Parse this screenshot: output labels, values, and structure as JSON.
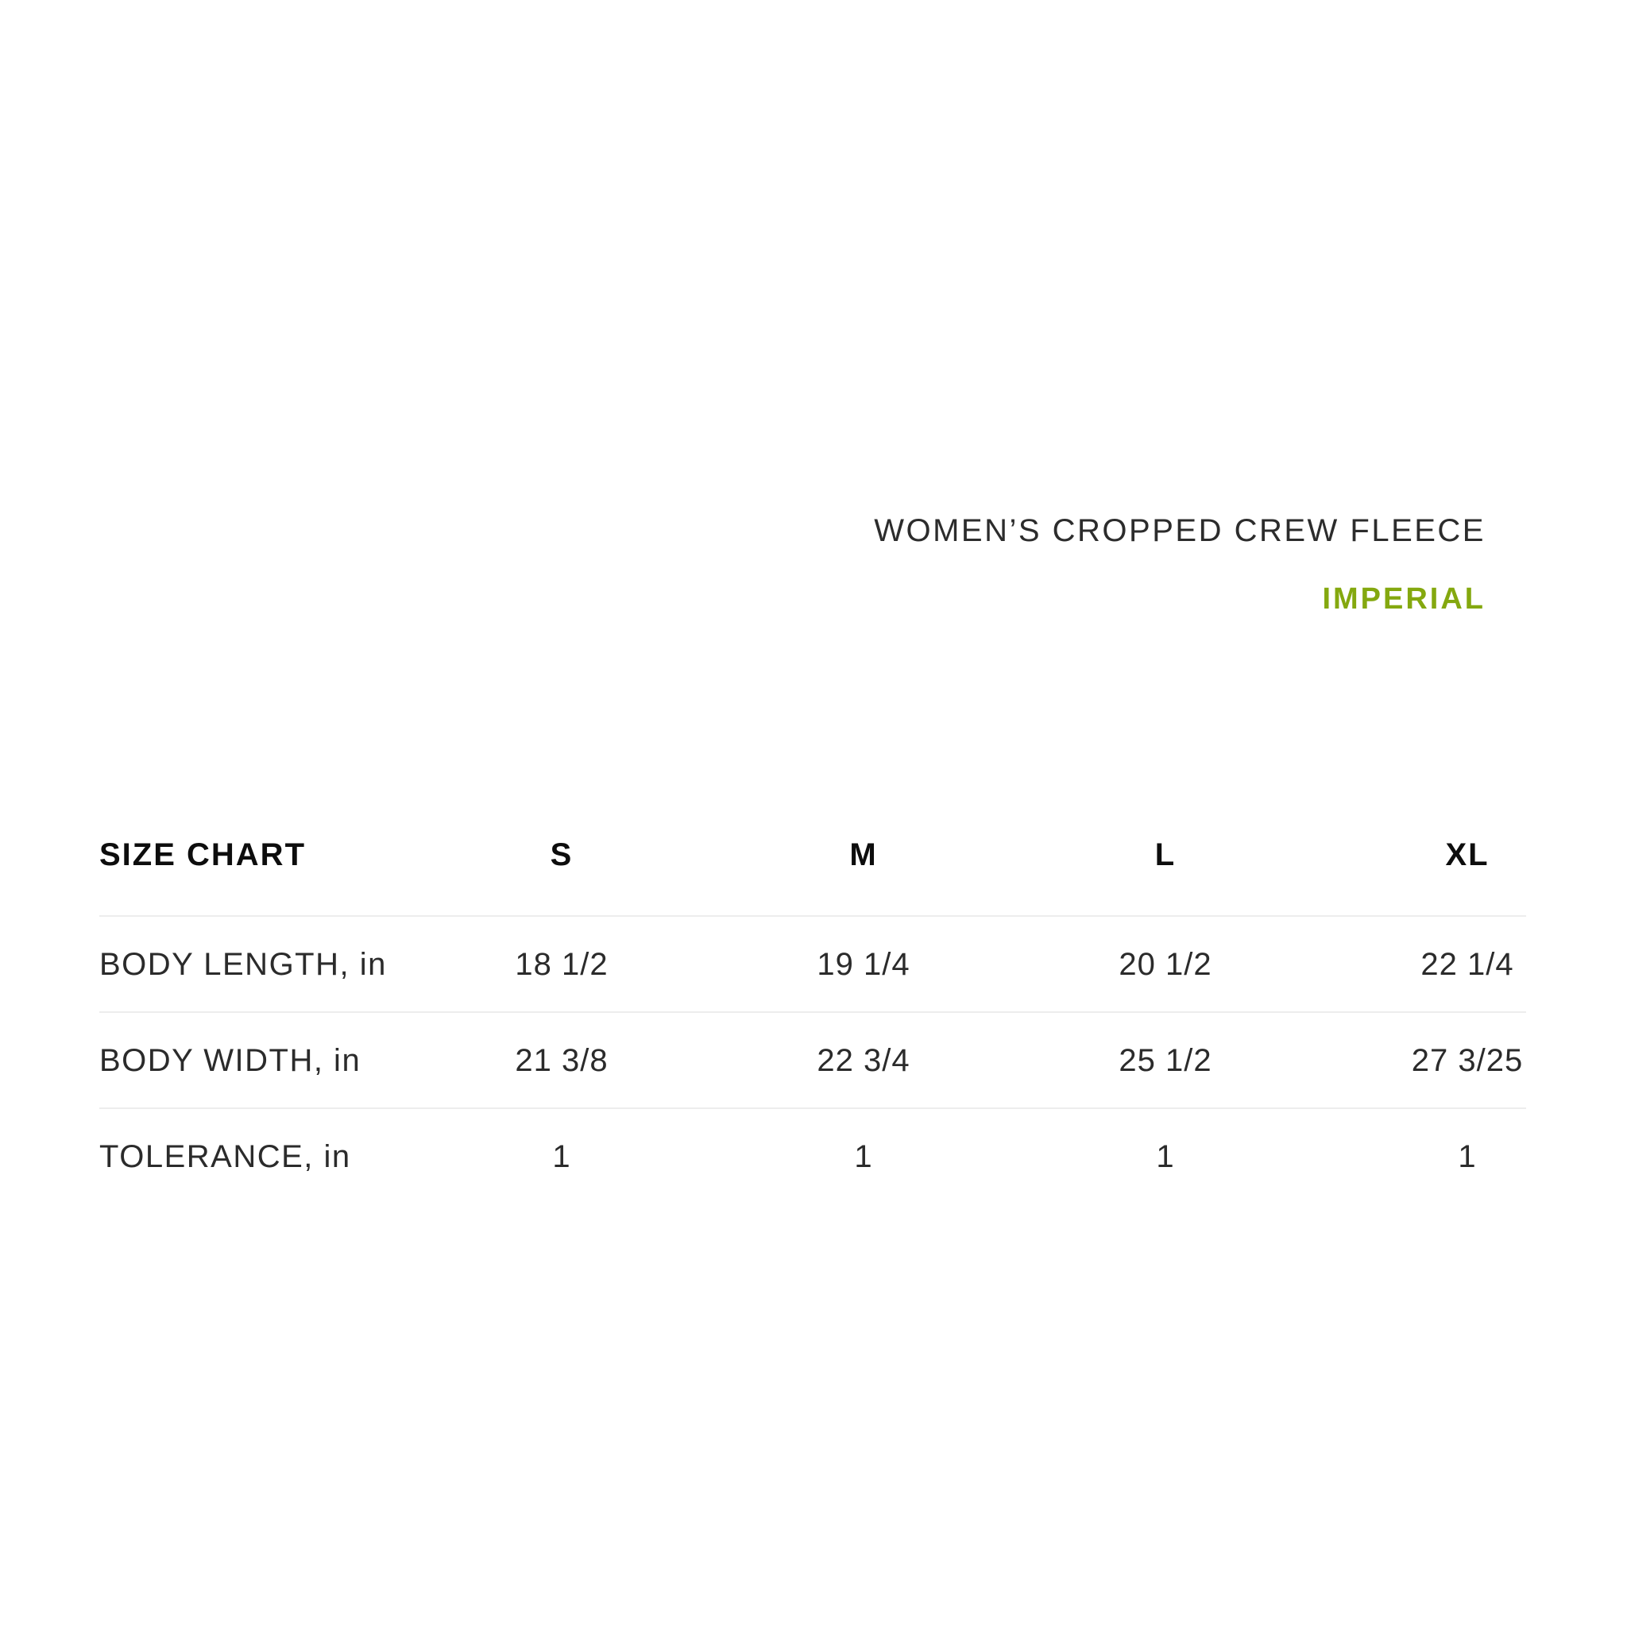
{
  "header": {
    "product_title": "WOMEN’S CROPPED CREW FLEECE",
    "unit_label": "IMPERIAL"
  },
  "colors": {
    "accent_green": "#84a80f",
    "text_regular": "#2b2b2b",
    "text_bold": "#0d0d0d",
    "rule_gray": "#ededed"
  },
  "size_chart": {
    "title": "SIZE CHART",
    "columns": [
      "S",
      "M",
      "L",
      "XL"
    ],
    "rows": [
      {
        "label": "BODY LENGTH, in",
        "values": [
          "18 1/2",
          "19 1/4",
          "20 1/2",
          "22 1/4"
        ]
      },
      {
        "label": "BODY WIDTH, in",
        "values": [
          "21 3/8",
          "22 3/4",
          "25 1/2",
          "27 3/25"
        ]
      },
      {
        "label": "TOLERANCE, in",
        "values": [
          "1",
          "1",
          "1",
          "1"
        ]
      }
    ]
  }
}
